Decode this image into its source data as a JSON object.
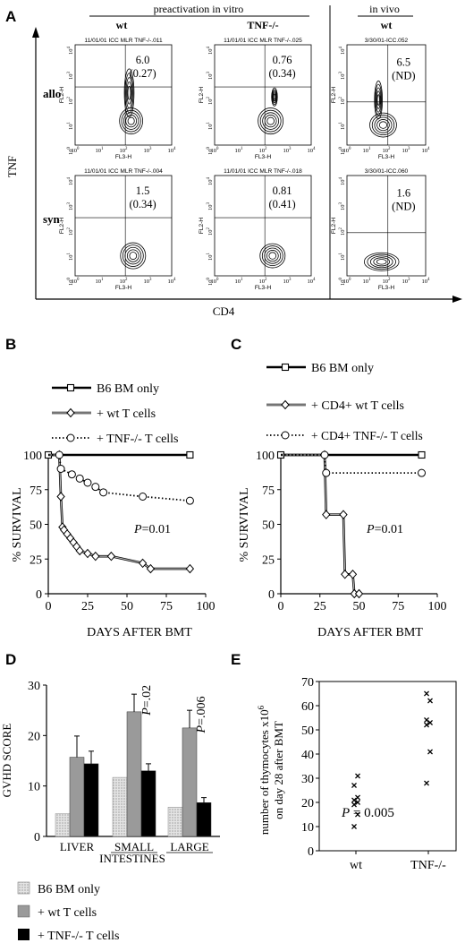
{
  "chart_data": [
    {
      "panel": "A",
      "type": "flow-cytometry-contour-grid",
      "xlabel": "CD4",
      "ylabel": "TNF",
      "group_labels": [
        "preactivation in vitro",
        "in vivo"
      ],
      "column_labels": [
        "wt",
        "TNF-/-",
        "wt"
      ],
      "row_labels": [
        "allo",
        "syn"
      ],
      "axis_x_title": "FL3-H",
      "axis_y_title": "FL2-H",
      "tick_labels": [
        "10^0",
        "10^1",
        "10^2",
        "10^3",
        "10^4"
      ],
      "plots": [
        {
          "file": "11/01/01 ICC MLR TNF-/-.011",
          "value": "6.0",
          "paren": "(0.27)"
        },
        {
          "file": "11/01/01 ICC MLR TNF-/-.025",
          "value": "0.76",
          "paren": "(0.34)"
        },
        {
          "file": "3/30/01-ICC.052",
          "value": "6.5",
          "paren": "(ND)"
        },
        {
          "file": "11/01/01 ICC MLR TNF-/-.004",
          "value": "1.5",
          "paren": "(0.34)"
        },
        {
          "file": "11/01/01 ICC MLR TNF-/-.018",
          "value": "0.81",
          "paren": "(0.41)"
        },
        {
          "file": "3/30/01-ICC.060",
          "value": "1.6",
          "paren": "(ND)"
        }
      ]
    },
    {
      "panel": "B",
      "type": "line",
      "xlabel": "DAYS AFTER BMT",
      "ylabel": "% SURVIVAL",
      "xlim": [
        0,
        100
      ],
      "ylim": [
        0,
        100
      ],
      "xticks": [
        0,
        25,
        50,
        75,
        100
      ],
      "yticks": [
        0,
        25,
        50,
        75,
        100
      ],
      "annotation_p": "P",
      "annotation_val": "=0.01",
      "series": [
        {
          "name": "B6 BM only",
          "x": [
            0,
            90
          ],
          "y": [
            100,
            100
          ]
        },
        {
          "name": "+ wt T cells",
          "x": [
            0,
            7,
            8,
            9,
            10,
            12,
            14,
            16,
            18,
            20,
            25,
            30,
            40,
            60,
            65,
            90
          ],
          "y": [
            100,
            100,
            70,
            48,
            46,
            43,
            40,
            37,
            34,
            31,
            29,
            27,
            27,
            22,
            18,
            18
          ]
        },
        {
          "name": "+ TNF-/- T cells",
          "x": [
            0,
            7,
            8,
            15,
            20,
            25,
            30,
            35,
            60,
            90
          ],
          "y": [
            100,
            100,
            90,
            86,
            83,
            80,
            77,
            73,
            70,
            67
          ]
        }
      ]
    },
    {
      "panel": "C",
      "type": "line",
      "xlabel": "DAYS AFTER BMT",
      "ylabel": "% SURVIVAL",
      "xlim": [
        0,
        100
      ],
      "ylim": [
        0,
        100
      ],
      "xticks": [
        0,
        25,
        50,
        75,
        100
      ],
      "yticks": [
        0,
        25,
        50,
        75,
        100
      ],
      "annotation_p": "P",
      "annotation_val": "=0.01",
      "series": [
        {
          "name": "B6 BM only",
          "x": [
            0,
            90
          ],
          "y": [
            100,
            100
          ]
        },
        {
          "name": "+ CD4+ wt T cells",
          "x": [
            0,
            28,
            29,
            40,
            41,
            46,
            47,
            50
          ],
          "y": [
            100,
            100,
            57,
            57,
            14,
            14,
            0,
            0
          ]
        },
        {
          "name": "+ CD4+ TNF-/- T cells",
          "x": [
            0,
            28,
            29,
            90
          ],
          "y": [
            100,
            100,
            87,
            87
          ]
        }
      ]
    },
    {
      "panel": "D",
      "type": "bar",
      "ylabel": "GVHD SCORE",
      "ylim": [
        0,
        30
      ],
      "yticks": [
        0,
        10,
        20,
        30
      ],
      "categories": [
        "LIVER",
        "SMALL",
        "LARGE"
      ],
      "sublabel": "INTESTINES",
      "series": [
        {
          "name": "B6 BM only",
          "values": [
            4.5,
            11.7,
            5.8
          ],
          "err": [
            0,
            0,
            0
          ]
        },
        {
          "name": "+ wt T cells",
          "values": [
            15.7,
            24.7,
            21.5
          ],
          "err": [
            4.2,
            3.5,
            3.5
          ]
        },
        {
          "name": "+ TNF-/- T cells",
          "values": [
            14.4,
            13.0,
            6.7
          ],
          "err": [
            2.5,
            1.4,
            1.0
          ]
        }
      ],
      "pvalues": [
        {
          "p": "P",
          "val": "=.02",
          "category": "SMALL"
        },
        {
          "p": "P",
          "val": "=.006",
          "category": "LARGE"
        }
      ]
    },
    {
      "panel": "E",
      "type": "scatter",
      "ylabel_line1": "number of thymocytes x10",
      "ylabel_sup": "6",
      "ylabel_line2": "on day 28 after BMT",
      "ylim": [
        0,
        70
      ],
      "yticks": [
        0,
        10,
        20,
        30,
        40,
        50,
        60,
        70
      ],
      "categories": [
        "wt",
        "TNF-/-"
      ],
      "annotation_p": "P",
      "annotation_val": " = 0.005",
      "points": [
        {
          "category": "wt",
          "values": [
            10,
            15,
            19,
            20,
            21,
            22,
            27,
            31
          ]
        },
        {
          "category": "TNF-/-",
          "values": [
            28,
            41,
            52,
            53,
            54,
            62,
            65
          ]
        }
      ]
    }
  ]
}
